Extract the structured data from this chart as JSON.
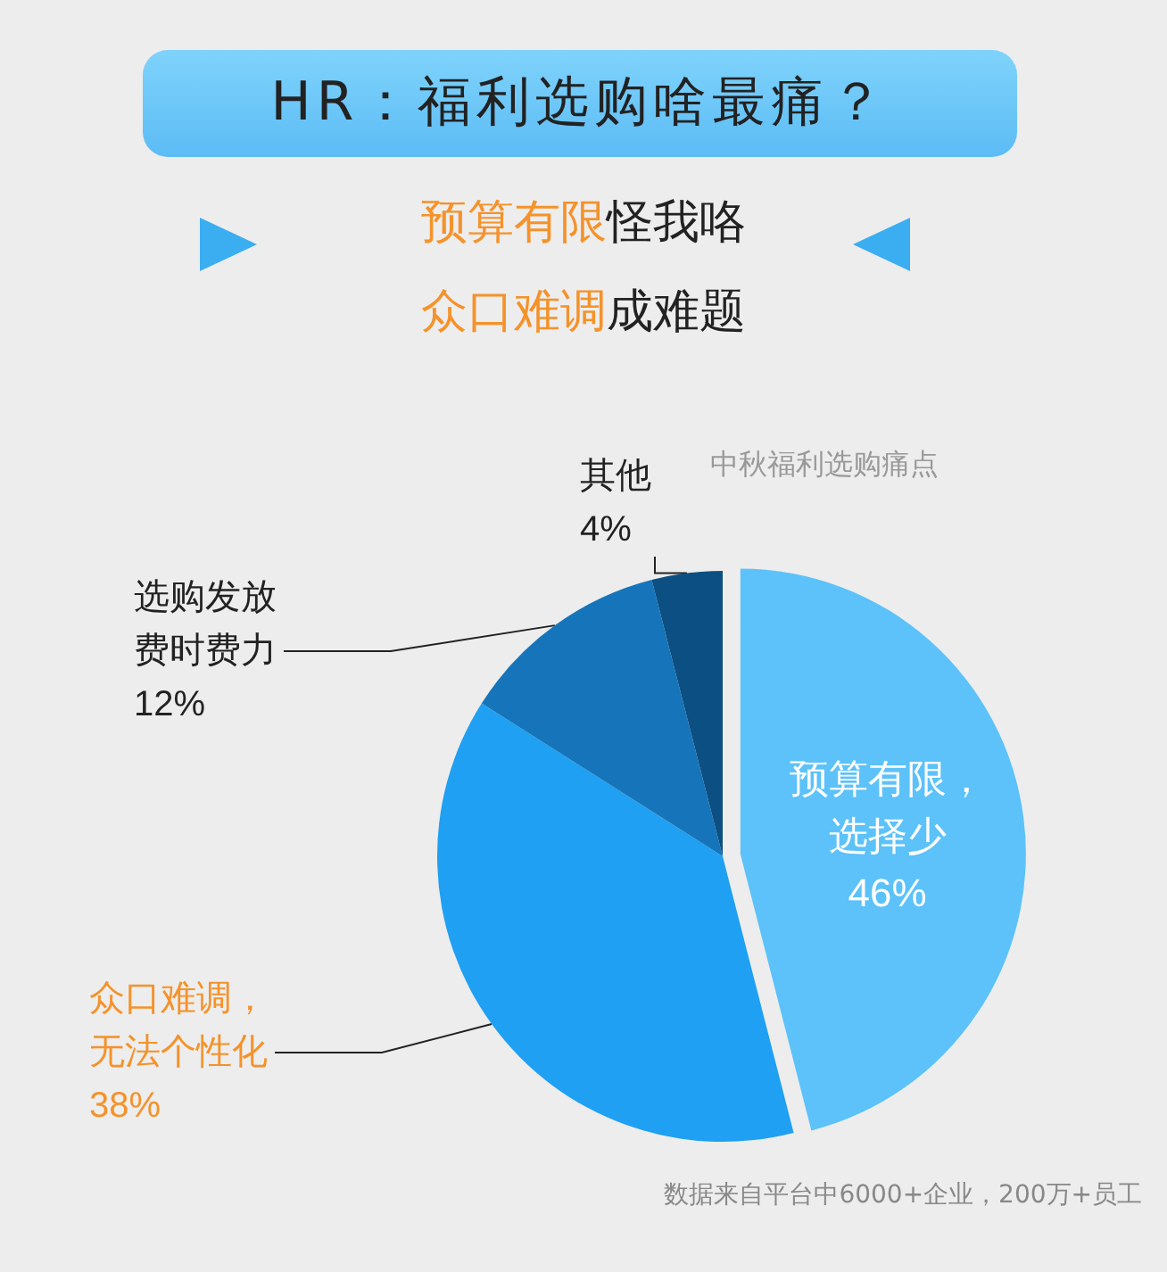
{
  "chart_data": {
    "type": "pie",
    "title": "HR：福利选购啥最痛？",
    "subtitle": "预算有限怪我咯众口难调成难题",
    "categories": [
      "预算有限，选择少",
      "众口难调，无法个性化",
      "选购发放费时费力",
      "其他"
    ],
    "values": [
      46,
      38,
      12,
      4
    ],
    "value_labels": [
      "46%",
      "38%",
      "12%",
      "4%"
    ],
    "colors": [
      "#5cc2f9",
      "#1fa0f2",
      "#1675ba",
      "#0c4f82"
    ],
    "annotations": [
      "中秋福利选购痛点",
      "数据来自平台中6000+企业，200万+员工"
    ],
    "legend": false
  }
}
